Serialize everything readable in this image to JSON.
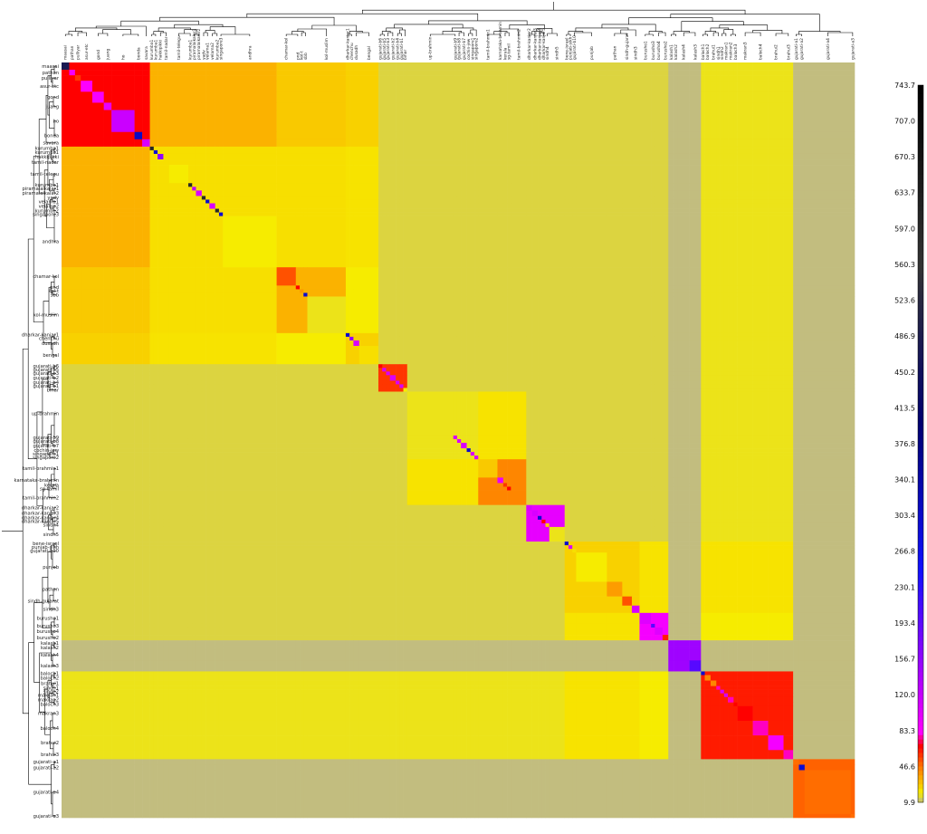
{
  "chart_data": {
    "type": "heatmap",
    "title": "",
    "xlabel": "",
    "ylabel": "",
    "colorbar": {
      "ticks": [
        743.7,
        707.0,
        670.3,
        633.7,
        597.0,
        560.3,
        523.6,
        486.9,
        450.2,
        413.5,
        376.8,
        340.1,
        303.4,
        266.8,
        230.1,
        193.4,
        156.7,
        120.0,
        83.3,
        46.6,
        9.9
      ],
      "range": [
        9.9,
        743.7
      ],
      "colormap": [
        {
          "v": 9.9,
          "c": "#b7b39a"
        },
        {
          "v": 22,
          "c": "#f6ec00"
        },
        {
          "v": 46.6,
          "c": "#ff7f00"
        },
        {
          "v": 70,
          "c": "#ff0000"
        },
        {
          "v": 83.3,
          "c": "#ff00ff"
        },
        {
          "v": 130,
          "c": "#bb00ff"
        },
        {
          "v": 250,
          "c": "#1010ff"
        },
        {
          "v": 400,
          "c": "#000070"
        },
        {
          "v": 560.3,
          "c": "#333333"
        },
        {
          "v": 743.7,
          "c": "#000000"
        }
      ]
    },
    "background": 17,
    "populations": [
      {
        "label": "maasai",
        "w": 2,
        "self": 480,
        "grp": 0
      },
      {
        "label": "pathan",
        "w": 1.5,
        "self": 90,
        "grp": 0
      },
      {
        "label": "pulliyar",
        "w": 1.5,
        "self": 60,
        "grp": 0
      },
      {
        "label": "asur-etc",
        "w": 3,
        "self": 85,
        "grp": 0
      },
      {
        "label": "gond",
        "w": 3,
        "self": 90,
        "grp": 0
      },
      {
        "label": "juang",
        "w": 2,
        "self": 100,
        "grp": 0
      },
      {
        "label": "ho",
        "w": 6,
        "self": 120,
        "grp": 0
      },
      {
        "label": "bonda",
        "w": 2,
        "self": 310,
        "grp": 0
      },
      {
        "label": "savara",
        "w": 2,
        "self": 110,
        "grp": 0
      },
      {
        "label": "kurumba1",
        "w": 1,
        "self": 600,
        "grp": 1
      },
      {
        "label": "kurumba1",
        "w": 1,
        "self": 300,
        "grp": 1
      },
      {
        "label": "hakkipikki",
        "w": 1.5,
        "self": 160,
        "grp": 1
      },
      {
        "label": "tamil-nadar",
        "w": 1.5,
        "self": 25,
        "grp": 1
      },
      {
        "label": "tamil-telegu",
        "w": 5,
        "self": 22,
        "grp": 1
      },
      {
        "label": "kurumba1",
        "w": 1,
        "self": 600,
        "grp": 1
      },
      {
        "label": "piramalaikalar1",
        "w": 1,
        "self": 130,
        "grp": 1
      },
      {
        "label": "piramalaikalar2",
        "w": 1.5,
        "self": 110,
        "grp": 1
      },
      {
        "label": "yadv",
        "w": 1,
        "self": 600,
        "grp": 1
      },
      {
        "label": "velama1",
        "w": 1,
        "self": 300,
        "grp": 1
      },
      {
        "label": "velama2",
        "w": 1.5,
        "self": 110,
        "grp": 1
      },
      {
        "label": "kurumba2",
        "w": 1,
        "self": 600,
        "grp": 1
      },
      {
        "label": "singapore3",
        "w": 1,
        "self": 300,
        "grp": 1
      },
      {
        "label": "andhra",
        "w": 14,
        "self": 22,
        "grp": 1
      },
      {
        "label": "chamar-kol",
        "w": 5,
        "self": 55,
        "grp": 2
      },
      {
        "label": "pnd",
        "w": 1,
        "self": 70,
        "grp": 2
      },
      {
        "label": "kol-t",
        "w": 1,
        "self": 40,
        "grp": 2
      },
      {
        "label": "sbb",
        "w": 1,
        "self": 300,
        "grp": 2
      },
      {
        "label": "kol-muslim",
        "w": 10,
        "self": 20,
        "grp": 2
      },
      {
        "label": "dharkar-kanjar1",
        "w": 1,
        "self": 300,
        "grp": 3
      },
      {
        "label": "chenchu",
        "w": 1,
        "self": 160,
        "grp": 3
      },
      {
        "label": "dusadh",
        "w": 1.5,
        "self": 110,
        "grp": 3
      },
      {
        "label": "bengal",
        "w": 5,
        "self": 25,
        "grp": 3
      },
      {
        "label": "gujarati-b6",
        "w": 1,
        "self": 70,
        "grp": 4
      },
      {
        "label": "gujarati-b5",
        "w": 1,
        "self": 110,
        "grp": 4
      },
      {
        "label": "gujarati-b3",
        "w": 1,
        "self": 110,
        "grp": 4
      },
      {
        "label": "gujarati-b2",
        "w": 1.5,
        "self": 110,
        "grp": 4
      },
      {
        "label": "gujarati-b4",
        "w": 1,
        "self": 110,
        "grp": 4
      },
      {
        "label": "gujarati-b1",
        "w": 1,
        "self": 110,
        "grp": 4
      },
      {
        "label": "bihar",
        "w": 1,
        "self": 22,
        "grp": 4
      },
      {
        "label": "up-brahmin",
        "w": 12,
        "self": 20,
        "grp": 5
      },
      {
        "label": "gujarati-b9",
        "w": 1,
        "self": 110,
        "grp": 5
      },
      {
        "label": "gujarati-b8",
        "w": 1,
        "self": 110,
        "grp": 5
      },
      {
        "label": "gujarati-b7",
        "w": 1.5,
        "self": 110,
        "grp": 5
      },
      {
        "label": "cochin-jew",
        "w": 1,
        "self": 300,
        "grp": 5
      },
      {
        "label": "singapore1",
        "w": 1,
        "self": 110,
        "grp": 5
      },
      {
        "label": "singapore2",
        "w": 1,
        "self": 110,
        "grp": 5
      },
      {
        "label": "tamil-brahmin1",
        "w": 5,
        "self": 30,
        "grp": 6
      },
      {
        "label": "karnataka-brahmin",
        "w": 1.5,
        "self": 100,
        "grp": 6
      },
      {
        "label": "kerala",
        "w": 1,
        "self": 60,
        "grp": 6
      },
      {
        "label": "sg-tamil",
        "w": 1,
        "self": 70,
        "grp": 6
      },
      {
        "label": "tamil-brahmin2",
        "w": 4,
        "self": 45,
        "grp": 6
      },
      {
        "label": "dharkar-kanjar2",
        "w": 1.5,
        "self": 110,
        "grp": 7
      },
      {
        "label": "dharkar-kanjar3",
        "w": 1.5,
        "self": 110,
        "grp": 7
      },
      {
        "label": "dharkar-kanjar4",
        "w": 1,
        "self": 300,
        "grp": 7
      },
      {
        "label": "dharkar-kanjar5",
        "w": 1,
        "self": 70,
        "grp": 7
      },
      {
        "label": "sindh4",
        "w": 1,
        "self": 30,
        "grp": 7
      },
      {
        "label": "sindh5",
        "w": 4,
        "self": 20,
        "grp": 7
      },
      {
        "label": "bene-israel",
        "w": 1,
        "self": 300,
        "grp": 8
      },
      {
        "label": "punjab-sikh",
        "w": 1,
        "self": 110,
        "grp": 8
      },
      {
        "label": "gujarati-b10",
        "w": 1,
        "self": 25,
        "grp": 8
      },
      {
        "label": "punjab",
        "w": 8,
        "self": 22,
        "grp": 8
      },
      {
        "label": "pathan",
        "w": 4,
        "self": 40,
        "grp": 8
      },
      {
        "label": "sindh-gujarat",
        "w": 2.5,
        "self": 55,
        "grp": 8
      },
      {
        "label": "sindh3",
        "w": 2,
        "self": 110,
        "grp": 8
      },
      {
        "label": "burusho1",
        "w": 3,
        "self": 105,
        "grp": 9
      },
      {
        "label": "burusho3",
        "w": 1,
        "self": 200,
        "grp": 9
      },
      {
        "label": "burusho4",
        "w": 2,
        "self": 105,
        "grp": 9
      },
      {
        "label": "burusho2",
        "w": 1.5,
        "self": 65,
        "grp": 9
      },
      {
        "label": "kalash1",
        "w": 1.5,
        "self": 150,
        "grp": 10
      },
      {
        "label": "kalash2",
        "w": 1,
        "self": 150,
        "grp": 10
      },
      {
        "label": "kalash4",
        "w": 3,
        "self": 150,
        "grp": 10
      },
      {
        "label": "kalash3",
        "w": 3,
        "self": 200,
        "grp": 10
      },
      {
        "label": "baloch1",
        "w": 1,
        "self": 300,
        "grp": 11
      },
      {
        "label": "baloch2",
        "w": 1.5,
        "self": 45,
        "grp": 11
      },
      {
        "label": "brahui1",
        "w": 1.5,
        "self": 45,
        "grp": 11
      },
      {
        "label": "sindh1",
        "w": 1,
        "self": 80,
        "grp": 11
      },
      {
        "label": "sindh2",
        "w": 1,
        "self": 110,
        "grp": 11
      },
      {
        "label": "makran1",
        "w": 1,
        "self": 110,
        "grp": 11
      },
      {
        "label": "makran2",
        "w": 1.5,
        "self": 80,
        "grp": 11
      },
      {
        "label": "baloch3",
        "w": 1,
        "self": 70,
        "grp": 11
      },
      {
        "label": "makran3",
        "w": 4,
        "self": 70,
        "grp": 11
      },
      {
        "label": "baloch4",
        "w": 4,
        "self": 80,
        "grp": 11
      },
      {
        "label": "brahui2",
        "w": 4,
        "self": 90,
        "grp": 11
      },
      {
        "label": "brahui3",
        "w": 2.5,
        "self": 80,
        "grp": 11
      },
      {
        "label": "gujarati-a1",
        "w": 1.5,
        "self": 50,
        "grp": 12
      },
      {
        "label": "gujarati-a2",
        "w": 1.5,
        "self": 300,
        "grp": 12
      },
      {
        "label": "gujarati-a4",
        "w": 12,
        "self": 50,
        "grp": 12
      },
      {
        "label": "gujarati-a3",
        "w": 1,
        "self": 50,
        "grp": 12
      }
    ],
    "group_block_values": [
      70,
      25,
      35,
      28,
      60,
      20,
      45,
      100,
      28,
      90,
      150,
      65,
      52
    ],
    "between_group_values": {
      "0-1": 35,
      "0-2": 30,
      "0-3": 28,
      "1-2": 25,
      "1-3": 24,
      "2-3": 22,
      "6-5": 24,
      "8-9": 24,
      "8-11": 24,
      "9-11": 22,
      "10-x": 12,
      "12-x": 12,
      "11-x": 20
    }
  }
}
